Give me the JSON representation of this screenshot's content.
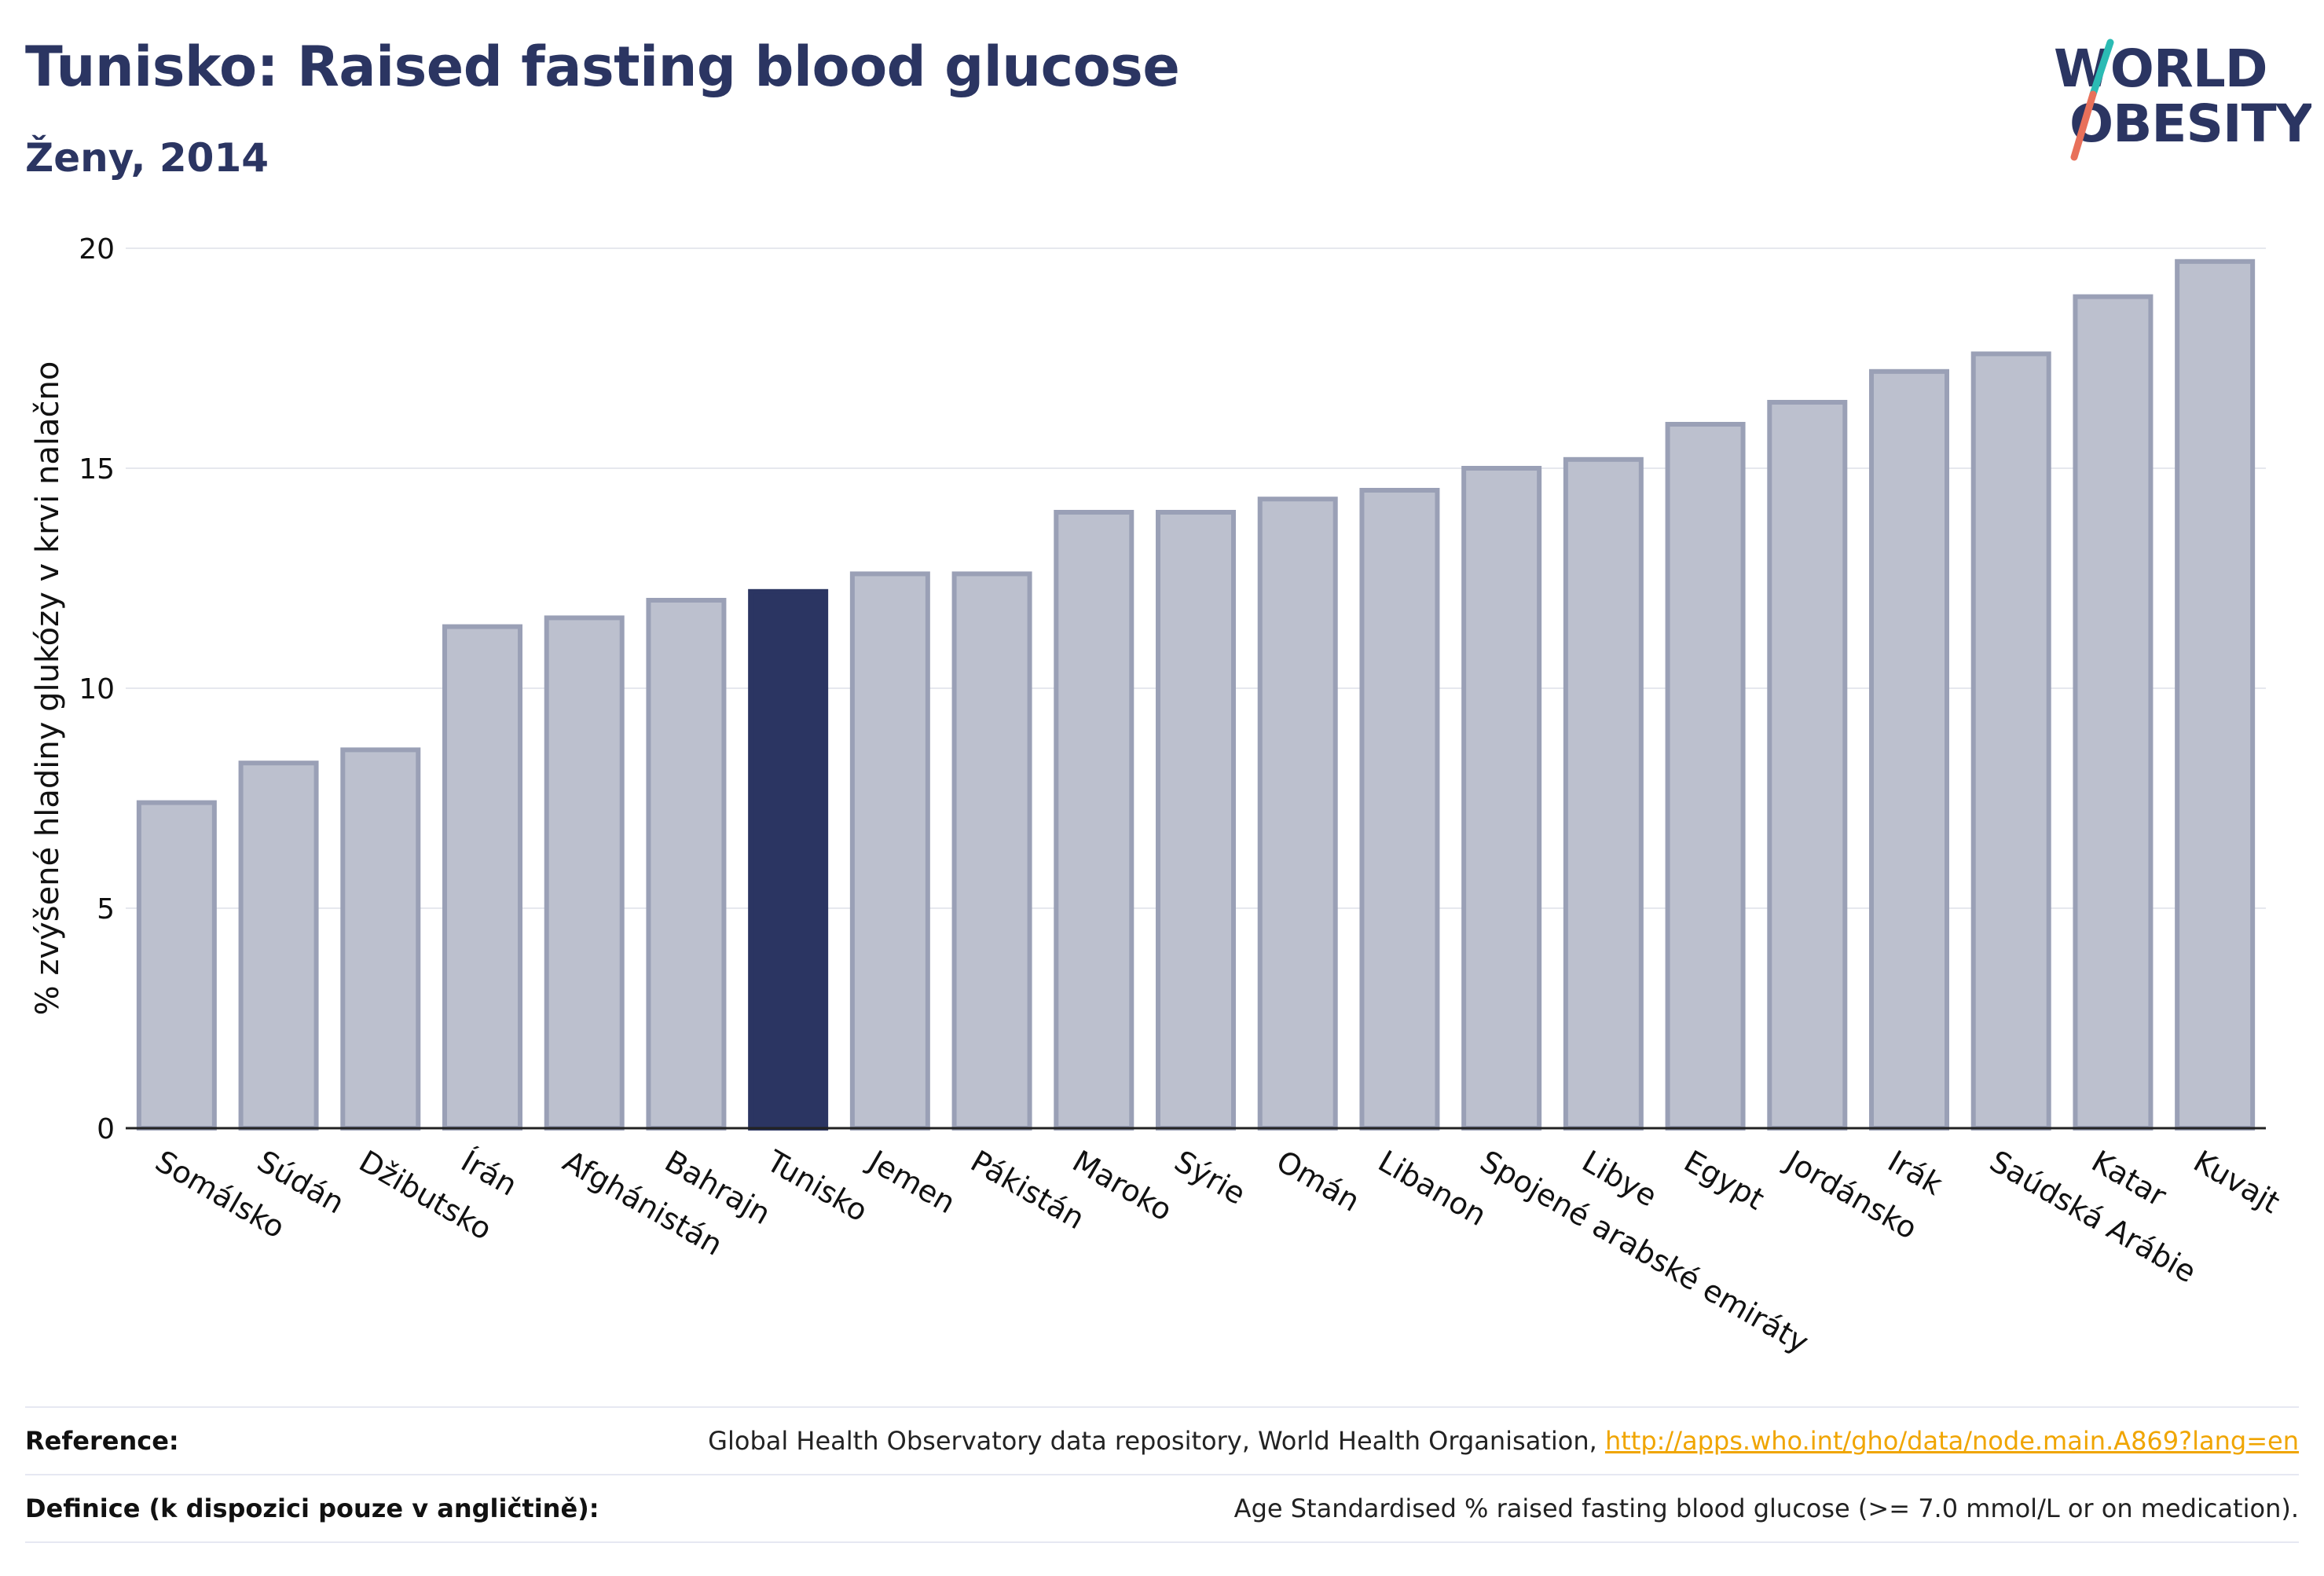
{
  "header": {
    "title": "Tunisko: Raised fasting blood glucose",
    "subtitle": "Ženy, 2014"
  },
  "logo": {
    "line1": "WORLD",
    "line2": "OBESITY",
    "slash_colors": [
      "#2bbbb4",
      "#e8705a"
    ]
  },
  "colors": {
    "highlight": "#2b3562",
    "bar": "#bcc0ce",
    "bar_edge": "#9aa0b6",
    "grid": "#e6e8ee",
    "axis": "#222222"
  },
  "chart_data": {
    "type": "bar",
    "title": "Tunisko: Raised fasting blood glucose",
    "subtitle": "Ženy, 2014",
    "xlabel": "",
    "ylabel": "% zvýšené hladiny glukózy v krvi nalačno",
    "ylim": [
      0,
      20
    ],
    "yticks": [
      0,
      5,
      10,
      15,
      20
    ],
    "grid": true,
    "highlight": "Tunisko",
    "categories": [
      "Somálsko",
      "Súdán",
      "Džibutsko",
      "Írán",
      "Afghánistán",
      "Bahrajn",
      "Tunisko",
      "Jemen",
      "Pákistán",
      "Maroko",
      "Sýrie",
      "Omán",
      "Libanon",
      "Spojené arabské emiráty",
      "Libye",
      "Egypt",
      "Jordánsko",
      "Irák",
      "Saúdská Arábie",
      "Katar",
      "Kuvajt"
    ],
    "values": [
      7.4,
      8.3,
      8.6,
      11.4,
      11.6,
      12.0,
      12.2,
      12.6,
      12.6,
      14.0,
      14.0,
      14.3,
      14.5,
      15.0,
      15.2,
      16.0,
      16.5,
      17.2,
      17.6,
      18.9,
      19.7
    ]
  },
  "footer": {
    "reference_label": "Reference:",
    "reference_text": "Global Health Observatory data repository, World Health Organisation,",
    "reference_link": "http://apps.who.int/gho/data/node.main.A869?lang=en",
    "definition_label": "Definice (k dispozici pouze v angličtině):",
    "definition_text": "Age Standardised % raised fasting blood glucose (>= 7.0 mmol/L or on medication)."
  }
}
